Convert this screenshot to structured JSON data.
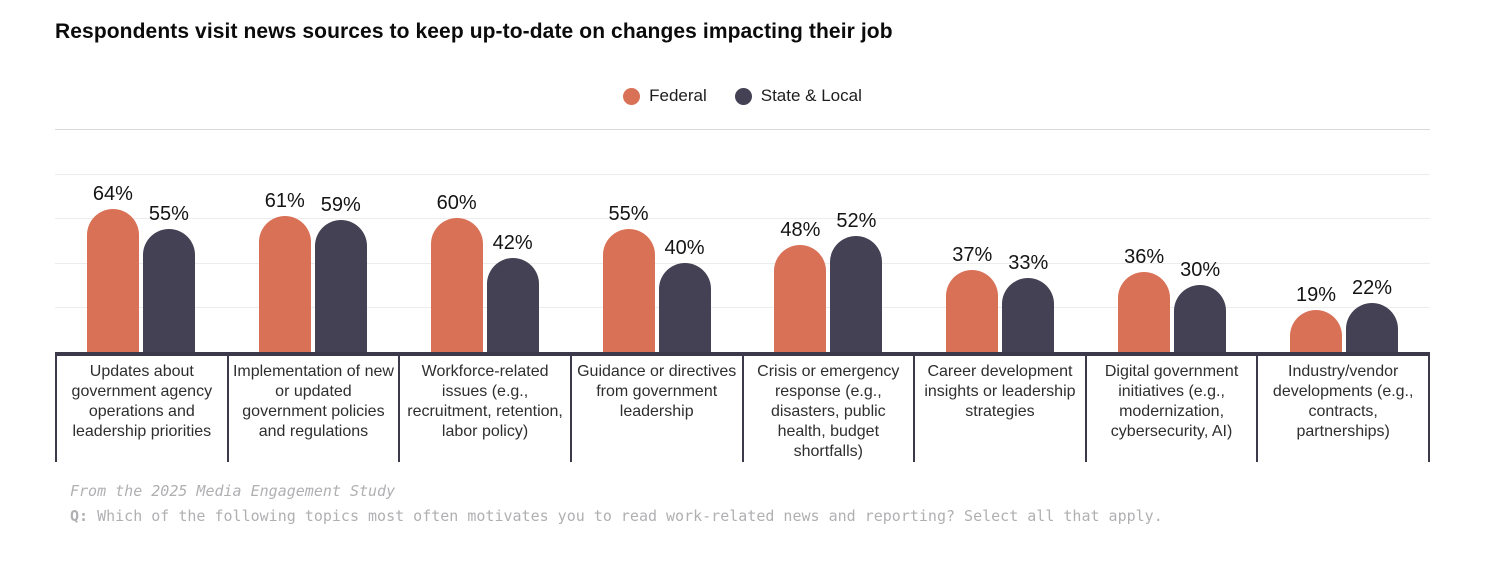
{
  "title": "Respondents visit news sources to keep up-to-date on changes impacting their job",
  "colors": {
    "federal": "#d97157",
    "state_local": "#434153",
    "axis": "#3c3a4a",
    "gridline": "#ececec",
    "gridline_top": "#d9d9d9"
  },
  "legend": {
    "items": [
      {
        "label": "Federal",
        "color": "#d97157"
      },
      {
        "label": "State & Local",
        "color": "#434153"
      }
    ]
  },
  "chart_data": {
    "type": "bar",
    "title": "Respondents visit news sources to keep up-to-date on changes impacting their job",
    "categories": [
      "Updates about government agency operations and leadership priorities",
      "Implementation of new or updated government policies and regulations",
      "Workforce-related issues (e.g., recruitment, retention, labor policy)",
      "Guidance or directives from government leadership",
      "Crisis or emergency response (e.g., disasters, public health, budget shortfalls)",
      "Career development insights or leadership strategies",
      "Digital government initiatives (e.g., modernization, cybersecurity, AI)",
      "Industry/vendor developments (e.g., contracts, partnerships)"
    ],
    "series": [
      {
        "name": "Federal",
        "color": "#d97157",
        "values": [
          64,
          61,
          60,
          55,
          48,
          37,
          36,
          19
        ]
      },
      {
        "name": "State & Local",
        "color": "#434153",
        "values": [
          55,
          59,
          42,
          40,
          52,
          33,
          30,
          22
        ]
      }
    ],
    "value_suffix": "%",
    "ylim": [
      0,
      100
    ],
    "gridlines": [
      20,
      40,
      60,
      80,
      100
    ],
    "grid": true,
    "legend_position": "top-center"
  },
  "footer": {
    "source": "From the 2025 Media Engagement Study",
    "question_prefix": "Q:",
    "question": " Which of the following topics most often motivates you to read work-related news and reporting? Select all that apply."
  }
}
